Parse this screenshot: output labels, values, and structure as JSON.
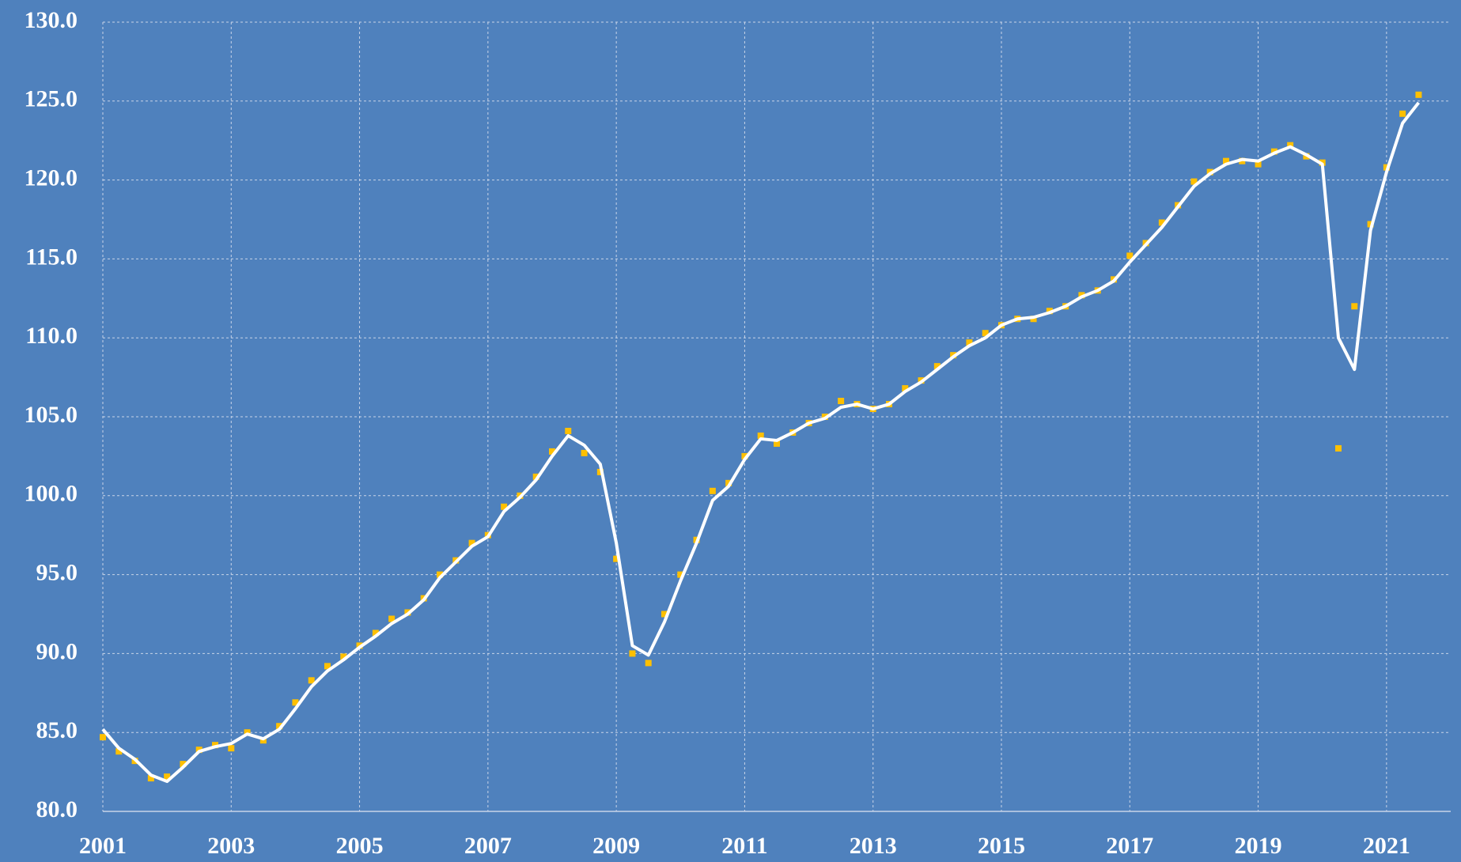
{
  "chart_data": {
    "type": "line",
    "x": [
      2001,
      2001.25,
      2001.5,
      2001.75,
      2002,
      2002.25,
      2002.5,
      2002.75,
      2003,
      2003.25,
      2003.5,
      2003.75,
      2004,
      2004.25,
      2004.5,
      2004.75,
      2005,
      2005.25,
      2005.5,
      2005.75,
      2006,
      2006.25,
      2006.5,
      2006.75,
      2007,
      2007.25,
      2007.5,
      2007.75,
      2008,
      2008.25,
      2008.5,
      2008.75,
      2009,
      2009.25,
      2009.5,
      2009.75,
      2010,
      2010.25,
      2010.5,
      2010.75,
      2011,
      2011.25,
      2011.5,
      2011.75,
      2012,
      2012.25,
      2012.5,
      2012.75,
      2013,
      2013.25,
      2013.5,
      2013.75,
      2014,
      2014.25,
      2014.5,
      2014.75,
      2015,
      2015.25,
      2015.5,
      2015.75,
      2016,
      2016.25,
      2016.5,
      2016.75,
      2017,
      2017.25,
      2017.5,
      2017.75,
      2018,
      2018.25,
      2018.5,
      2018.75,
      2019,
      2019.25,
      2019.5,
      2019.75,
      2020,
      2020.25,
      2020.5,
      2020.75,
      2021,
      2021.25,
      2021.5
    ],
    "series": [
      {
        "mode": "markers",
        "color": "#ffc000",
        "values": [
          84.7,
          83.8,
          83.2,
          82.1,
          82.2,
          83.0,
          83.9,
          84.2,
          84.0,
          85.0,
          84.5,
          85.4,
          86.9,
          88.3,
          89.2,
          89.8,
          90.5,
          91.3,
          92.2,
          92.6,
          93.5,
          95.0,
          95.9,
          97.0,
          97.5,
          99.3,
          100.0,
          101.2,
          102.8,
          104.1,
          102.7,
          101.5,
          96.0,
          90.0,
          89.4,
          92.5,
          95.0,
          97.2,
          100.3,
          100.8,
          102.5,
          103.8,
          103.3,
          104.0,
          104.6,
          105.0,
          106.0,
          105.8,
          105.5,
          105.8,
          106.8,
          107.3,
          108.2,
          108.9,
          109.7,
          110.3,
          110.8,
          111.2,
          111.2,
          111.7,
          112.0,
          112.7,
          113.0,
          113.7,
          115.2,
          116.0,
          117.3,
          118.4,
          119.9,
          120.5,
          121.2,
          121.2,
          121.0,
          121.8,
          122.2,
          121.5,
          121.1,
          103.0,
          112.0,
          117.2,
          120.8,
          124.2,
          125.4
        ]
      },
      {
        "mode": "lines",
        "color": "#ffffff",
        "values": [
          85.2,
          84.0,
          83.3,
          82.3,
          81.9,
          82.8,
          83.8,
          84.1,
          84.3,
          84.9,
          84.6,
          85.2,
          86.5,
          87.9,
          88.9,
          89.6,
          90.4,
          91.1,
          91.9,
          92.5,
          93.4,
          94.8,
          95.8,
          96.8,
          97.4,
          99.0,
          99.9,
          101.0,
          102.5,
          103.8,
          103.2,
          102.0,
          97.0,
          90.5,
          89.9,
          92.0,
          94.6,
          97.0,
          99.7,
          100.6,
          102.3,
          103.6,
          103.5,
          104.0,
          104.6,
          104.9,
          105.6,
          105.8,
          105.5,
          105.8,
          106.6,
          107.2,
          108.0,
          108.8,
          109.5,
          110.0,
          110.8,
          111.2,
          111.3,
          111.6,
          112.0,
          112.6,
          113.0,
          113.6,
          114.8,
          115.9,
          117.0,
          118.3,
          119.6,
          120.4,
          121.0,
          121.3,
          121.2,
          121.7,
          122.1,
          121.6,
          121.0,
          110.0,
          108.0,
          116.8,
          120.5,
          123.6,
          124.9
        ]
      }
    ],
    "xlim": [
      2001,
      2022
    ],
    "xticks": [
      2001,
      2003,
      2005,
      2007,
      2009,
      2011,
      2013,
      2015,
      2017,
      2019,
      2021
    ],
    "ylim": [
      80,
      130
    ],
    "yticks": [
      {
        "value": 80,
        "label": "80.0"
      },
      {
        "value": 85,
        "label": "85.0"
      },
      {
        "value": 90,
        "label": "90.0"
      },
      {
        "value": 95,
        "label": "95.0"
      },
      {
        "value": 100,
        "label": "100.0"
      },
      {
        "value": 105,
        "label": "105.0"
      },
      {
        "value": 110,
        "label": "110.0"
      },
      {
        "value": 115,
        "label": "115.0"
      },
      {
        "value": 120,
        "label": "120.0"
      },
      {
        "value": 125,
        "label": "125.0"
      },
      {
        "value": 130,
        "label": "130.0"
      }
    ],
    "grid": true
  }
}
